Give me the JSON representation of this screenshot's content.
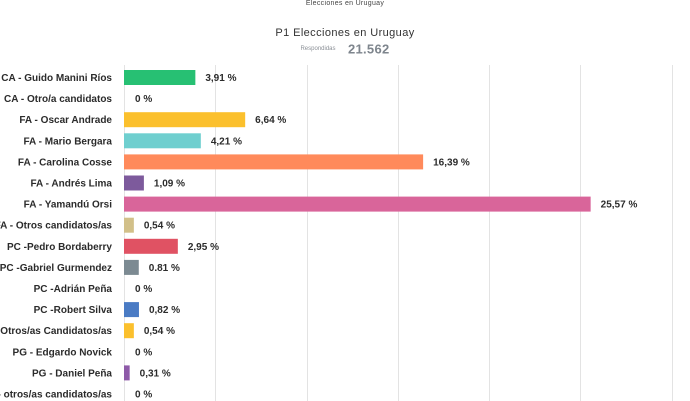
{
  "header": {
    "top_title": "Elecciones en Uruguay",
    "chart_title": "P1 Elecciones en Uruguay",
    "responses_label": "Respondidas",
    "responses_value": "21.562"
  },
  "chart_data": {
    "type": "bar",
    "orientation": "horizontal",
    "title": "P1 Elecciones en Uruguay",
    "xlabel": "",
    "ylabel": "",
    "xlim": [
      0,
      31.25
    ],
    "grid": true,
    "categories": [
      "CA - Guido Manini Ríos",
      "CA - Otro/a candidatos",
      "FA - Oscar Andrade",
      "FA - Mario Bergara",
      "FA - Carolina Cosse",
      "FA - Andrés Lima",
      "FA - Yamandú Orsi",
      "FA - Otros candidatos/as",
      "PC -Pedro Bordaberry",
      "PC -Gabriel Gurmendez",
      "PC -Adrián Peña",
      "PC -Robert Silva",
      "PC -Otros/as Candidatos/as",
      "PG - Edgardo Novick",
      "PG - Daniel Peña",
      "PG - otros/as candidatos/as"
    ],
    "values": [
      3.91,
      0,
      6.64,
      4.21,
      16.39,
      1.09,
      25.57,
      0.54,
      2.95,
      0.81,
      0,
      0.82,
      0.54,
      0,
      0.31,
      0
    ],
    "value_labels": [
      "3,91 %",
      "0 %",
      "6,64 %",
      "4,21 %",
      "16,39 %",
      "1,09 %",
      "25,57 %",
      "0,54 %",
      "2,95 %",
      "0.81 %",
      "0 %",
      "0,82 %",
      "0,54 %",
      "0 %",
      "0,31 %",
      "0 %"
    ],
    "colors": [
      "#27c073",
      "#cccccc",
      "#fbc02d",
      "#6fcfcf",
      "#ff8a5b",
      "#7d5a9c",
      "#d9659a",
      "#d2c089",
      "#e05263",
      "#7c8a92",
      "#cccccc",
      "#4a7bc4",
      "#fbc02d",
      "#cccccc",
      "#8e5aa8",
      "#cccccc"
    ]
  }
}
